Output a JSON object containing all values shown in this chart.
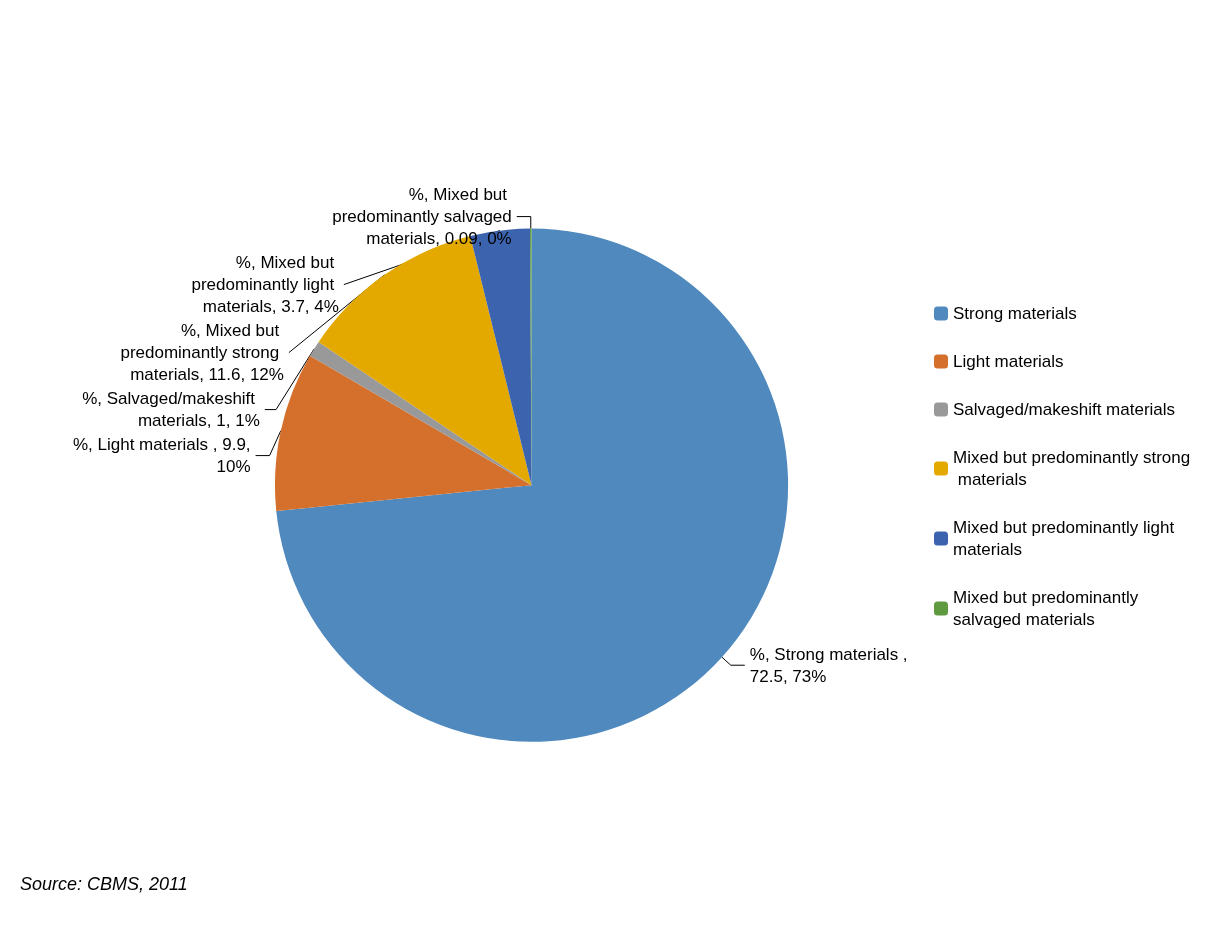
{
  "chart_data": {
    "type": "pie",
    "categories": [
      "Strong materials",
      "Light materials",
      "Salvaged/makeshift materials",
      "Mixed but predominantly strong materials",
      "Mixed but predominantly light materials",
      "Mixed but predominantly salvaged materials"
    ],
    "values": [
      72.5,
      9.9,
      1,
      11.6,
      3.7,
      0.09
    ],
    "value_labels": [
      "%, Strong materials , 72.5, 73%",
      "%, Light materials , 9.9, 10%",
      "%, Salvaged/makeshift materials, 1, 1%",
      "%, Mixed but predominantly strong materials, 11.6, 12%",
      "%, Mixed but predominantly light materials, 3.7, 4%",
      "%, Mixed but predominantly salvaged materials, 0.09, 0%"
    ],
    "colors": [
      "#4f89bd",
      "#d46f2c",
      "#999999",
      "#e3a900",
      "#3c63ae",
      "#5f9a40"
    ],
    "legend": "right",
    "annotations": [
      "Source: CBMS, 2011"
    ]
  }
}
